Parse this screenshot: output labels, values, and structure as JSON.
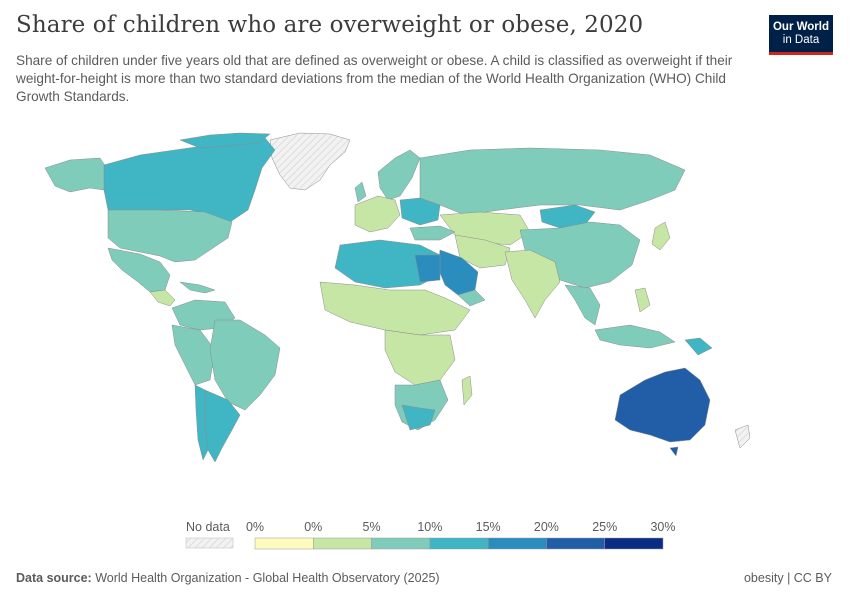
{
  "header": {
    "title": "Share of children who are overweight or obese, 2020",
    "subtitle": "Share of children under five years old that are defined as overweight or obese. A child is classified as overweight if their weight-for-height is more than two standard deviations from the median of the World Health Organization (WHO) Child Growth Standards."
  },
  "logo": {
    "line1": "Our World",
    "line2": "in Data"
  },
  "legend": {
    "no_data_label": "No data",
    "ticks": [
      "0%",
      "0%",
      "5%",
      "10%",
      "15%",
      "20%",
      "25%",
      "30%"
    ],
    "colors": [
      "#fefbbf",
      "#c6e6a6",
      "#7fccba",
      "#40b5c4",
      "#2b8cbe",
      "#225ea8",
      "#0b2c84"
    ]
  },
  "footer": {
    "source_label": "Data source:",
    "source_text": "World Health Organization - Global Health Observatory (2025)",
    "slug": "obesity | CC BY"
  },
  "colors": {
    "band_0_5": "#c6e6a6",
    "band_5_10": "#7fccba",
    "band_10_15": "#40b5c4",
    "band_15_20": "#2b8cbe",
    "band_20_25": "#225ea8",
    "no_data": "#e8e8e8"
  }
}
